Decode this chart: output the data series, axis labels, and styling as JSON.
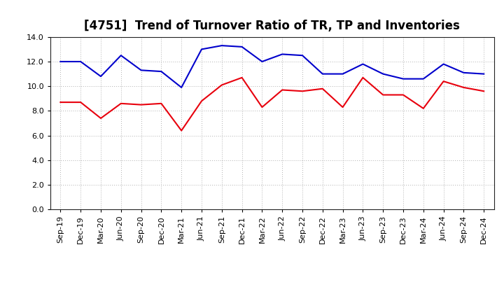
{
  "title": "[4751]  Trend of Turnover Ratio of TR, TP and Inventories",
  "x_labels": [
    "Sep-19",
    "Dec-19",
    "Mar-20",
    "Jun-20",
    "Sep-20",
    "Dec-20",
    "Mar-21",
    "Jun-21",
    "Sep-21",
    "Dec-21",
    "Mar-22",
    "Jun-22",
    "Sep-22",
    "Dec-22",
    "Mar-23",
    "Jun-23",
    "Sep-23",
    "Dec-23",
    "Mar-24",
    "Jun-24",
    "Sep-24",
    "Dec-24"
  ],
  "trade_receivables": [
    8.7,
    8.7,
    7.4,
    8.6,
    8.5,
    8.6,
    6.4,
    8.8,
    10.1,
    10.7,
    8.3,
    9.7,
    9.6,
    9.8,
    8.3,
    10.7,
    9.3,
    9.3,
    8.2,
    10.4,
    9.9,
    9.6
  ],
  "trade_payables": [
    12.0,
    12.0,
    10.8,
    12.5,
    11.3,
    11.2,
    9.9,
    13.0,
    13.3,
    13.2,
    12.0,
    12.6,
    12.5,
    11.0,
    11.0,
    11.8,
    11.0,
    10.6,
    10.6,
    11.8,
    11.1,
    11.0
  ],
  "inventories": [],
  "ylim": [
    0.0,
    14.0
  ],
  "yticks": [
    0.0,
    2.0,
    4.0,
    6.0,
    8.0,
    10.0,
    12.0,
    14.0
  ],
  "color_tr": "#e8000d",
  "color_tp": "#0000cc",
  "color_inv": "#008000",
  "bg_color": "#ffffff",
  "grid_color": "#b0b0b0",
  "title_fontsize": 12,
  "legend_fontsize": 9.5,
  "tick_fontsize": 8
}
